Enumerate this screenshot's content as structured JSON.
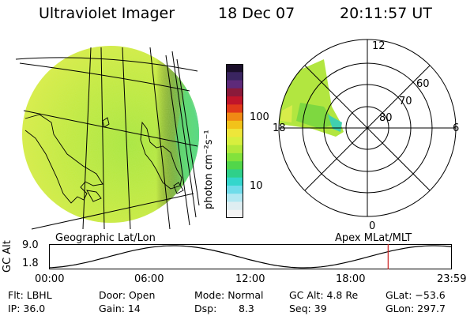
{
  "header": {
    "instrument": "Ultraviolet Imager",
    "date": "18 Dec 07",
    "time": "20:11:57 UT"
  },
  "colorbar": {
    "label": "photon cm⁻²s⁻¹",
    "ticks": [
      "100",
      "10"
    ],
    "scale": "log",
    "colors": [
      "#1a0f2a",
      "#3a2560",
      "#5e2a7a",
      "#8a1a3a",
      "#c0152a",
      "#e03a1a",
      "#f08a14",
      "#f2c21a",
      "#eee63a",
      "#d7ef3e",
      "#b2e83a",
      "#82e23c",
      "#52d64a",
      "#2fd08a",
      "#34d6cc",
      "#70dcea",
      "#b2e8f2",
      "#dfeef2",
      "#f4f4f4"
    ]
  },
  "polar": {
    "mlt_labels": [
      "12",
      "18",
      "6",
      "0"
    ],
    "mlat_labels": [
      "60",
      "70",
      "80"
    ]
  },
  "map": {
    "left_label": "Geographic Lat/Lon",
    "right_label": "Apex MLat/MLT"
  },
  "timeline": {
    "ylabel": "GC Alt",
    "y_ticks": [
      "9.0",
      "1.8"
    ],
    "x_ticks": [
      "00:00",
      "06:00",
      "12:00",
      "18:00",
      "23:59"
    ],
    "current_time_hours": 20.2,
    "marker_color": "#cc2222"
  },
  "status": {
    "flt": "Flt: LBHL",
    "door": "Door: Open",
    "mode": "Mode: Normal",
    "gc_alt": "GC Alt: 4.8 Re",
    "glat": "GLat: −53.6",
    "ip": "IP: 36.0",
    "gain": "Gain: 14",
    "dsp_label": "Dsp:",
    "dsp_value": "8.3",
    "seq": "Seq: 39",
    "glon": "GLon: 297.7"
  }
}
